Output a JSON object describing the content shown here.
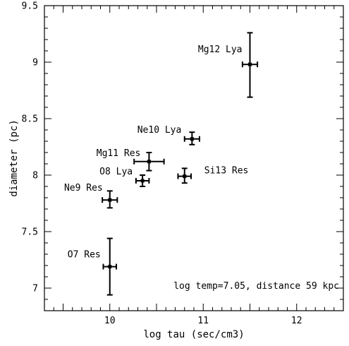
{
  "chart_data": {
    "type": "scatter",
    "title": "",
    "xlabel": "log tau (sec/cm3)",
    "ylabel": "diameter (pc)",
    "xlim": [
      9.3,
      12.5
    ],
    "ylim": [
      6.8,
      9.5
    ],
    "x_ticks": [
      10,
      11,
      12
    ],
    "x_tick_labels": [
      "10",
      "11",
      "12"
    ],
    "y_ticks": [
      7,
      7.5,
      8,
      8.5,
      9,
      9.5
    ],
    "y_tick_labels": [
      "7",
      "7.5",
      "8",
      "8.5",
      "9",
      "9.5"
    ],
    "grid": false,
    "annotation": "log temp=7.05, distance 59 kpc",
    "points": [
      {
        "label": "Mg12 Lya",
        "x": 11.5,
        "y": 8.98,
        "xerr": 0.08,
        "yerr_low": 0.29,
        "yerr_high": 0.28
      },
      {
        "label": "Ne10 Lya",
        "x": 10.88,
        "y": 8.32,
        "xerr": 0.08,
        "yerr_low": 0.05,
        "yerr_high": 0.06
      },
      {
        "label": "Mg11 Res",
        "x": 10.42,
        "y": 8.12,
        "xerr": 0.16,
        "yerr_low": 0.08,
        "yerr_high": 0.08
      },
      {
        "label": "O8 Lya",
        "x": 10.35,
        "y": 7.95,
        "xerr": 0.07,
        "yerr_low": 0.05,
        "yerr_high": 0.05
      },
      {
        "label": "Si13 Res",
        "x": 10.8,
        "y": 7.99,
        "xerr": 0.07,
        "yerr_low": 0.06,
        "yerr_high": 0.07
      },
      {
        "label": "Ne9 Res",
        "x": 10.0,
        "y": 7.78,
        "xerr": 0.08,
        "yerr_low": 0.07,
        "yerr_high": 0.08
      },
      {
        "label": "O7 Res",
        "x": 10.0,
        "y": 7.19,
        "xerr": 0.07,
        "yerr_low": 0.25,
        "yerr_high": 0.25
      }
    ]
  }
}
